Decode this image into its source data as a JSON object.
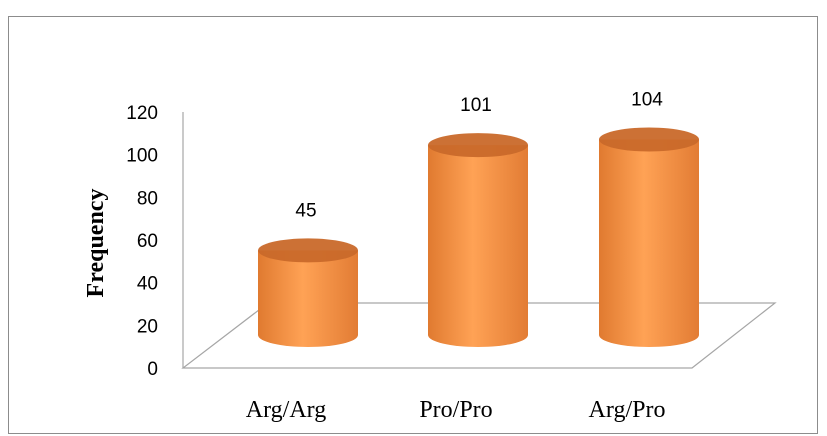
{
  "chart_data": {
    "type": "bar",
    "style": "3d-cylinder",
    "categories": [
      "Arg/Arg",
      "Pro/Pro",
      "Arg/Pro"
    ],
    "values": [
      45,
      101,
      104
    ],
    "data_labels": [
      "45",
      "101",
      "104"
    ],
    "title": "",
    "xlabel": "",
    "ylabel": "Frequency",
    "ylim": [
      0,
      120
    ],
    "yticks": [
      "0",
      "20",
      "40",
      "60",
      "80",
      "100",
      "120"
    ],
    "grid": false,
    "legend": "none",
    "bar_color": "#f79646"
  }
}
